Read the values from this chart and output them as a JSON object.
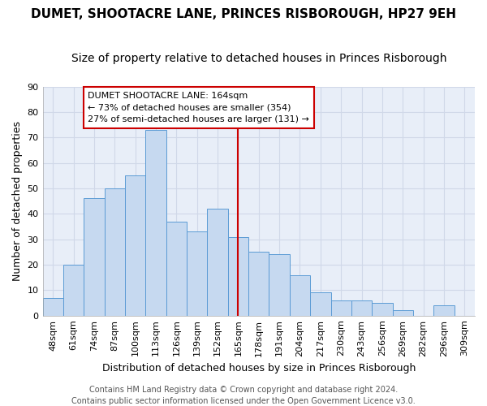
{
  "title": "DUMET, SHOOTACRE LANE, PRINCES RISBOROUGH, HP27 9EH",
  "subtitle": "Size of property relative to detached houses in Princes Risborough",
  "xlabel": "Distribution of detached houses by size in Princes Risborough",
  "ylabel": "Number of detached properties",
  "bar_labels": [
    "48sqm",
    "61sqm",
    "74sqm",
    "87sqm",
    "100sqm",
    "113sqm",
    "126sqm",
    "139sqm",
    "152sqm",
    "165sqm",
    "178sqm",
    "191sqm",
    "204sqm",
    "217sqm",
    "230sqm",
    "243sqm",
    "256sqm",
    "269sqm",
    "282sqm",
    "296sqm",
    "309sqm"
  ],
  "bar_values": [
    7,
    20,
    46,
    50,
    55,
    73,
    37,
    33,
    42,
    31,
    25,
    24,
    16,
    9,
    6,
    6,
    5,
    2,
    0,
    4,
    0
  ],
  "bar_color": "#c6d9f0",
  "bar_edge_color": "#5b9bd5",
  "grid_color": "#d0d8e8",
  "vline_x_index": 9,
  "vline_color": "#cc0000",
  "annotation_title": "DUMET SHOOTACRE LANE: 164sqm",
  "annotation_line1": "← 73% of detached houses are smaller (354)",
  "annotation_line2": "27% of semi-detached houses are larger (131) →",
  "annotation_box_edge": "#cc0000",
  "ylim": [
    0,
    90
  ],
  "yticks": [
    0,
    10,
    20,
    30,
    40,
    50,
    60,
    70,
    80,
    90
  ],
  "footer_line1": "Contains HM Land Registry data © Crown copyright and database right 2024.",
  "footer_line2": "Contains public sector information licensed under the Open Government Licence v3.0.",
  "background_color": "#ffffff",
  "title_fontsize": 11,
  "subtitle_fontsize": 10,
  "axis_label_fontsize": 9,
  "tick_fontsize": 8,
  "footer_fontsize": 7
}
